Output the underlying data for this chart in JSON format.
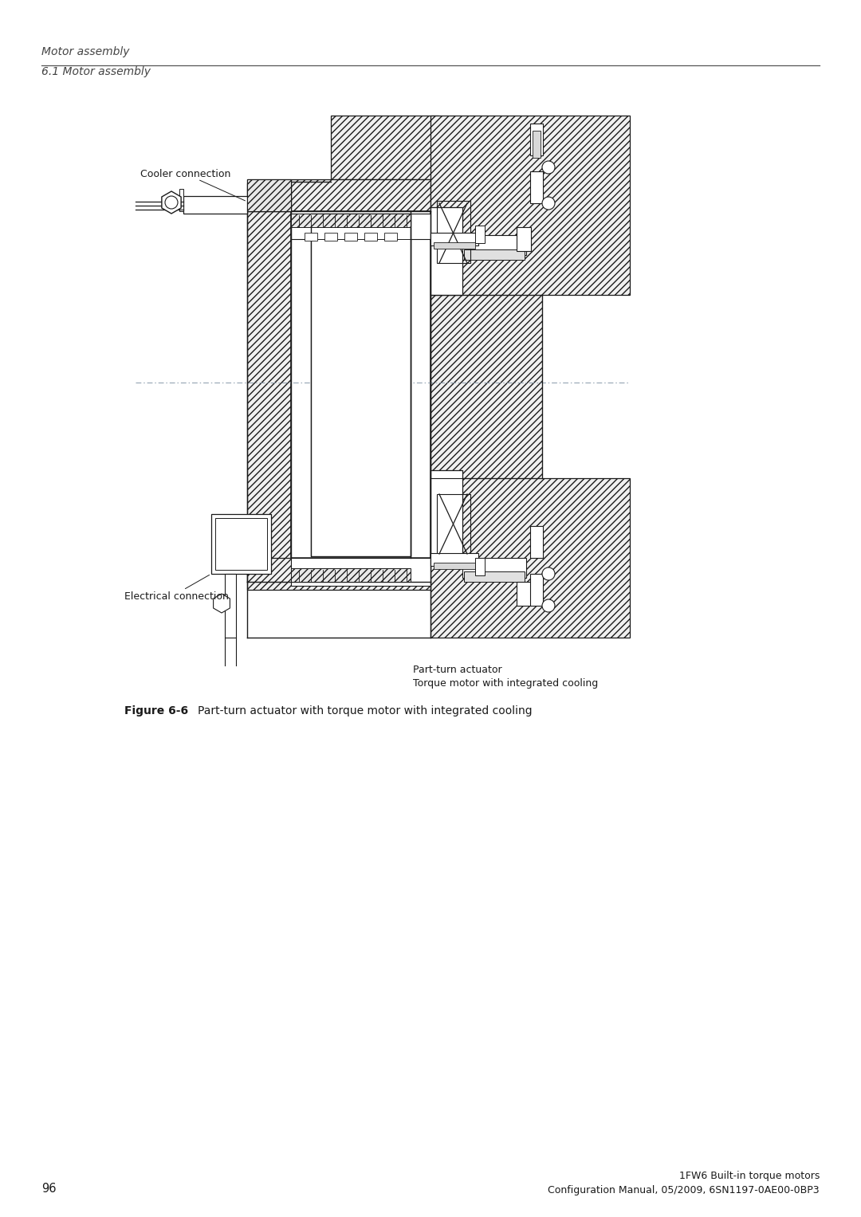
{
  "bg_color": "#ffffff",
  "header_line1": "Motor assembly",
  "header_line2": "6.1 Motor assembly",
  "cooler_label": "Cooler connection",
  "electrical_label": "Electrical connection",
  "annotation_line1": "Part-turn actuator",
  "annotation_line2": "Torque motor with integrated cooling",
  "caption_bold": "Figure 6-6",
  "caption_text": "Part-turn actuator with torque motor with integrated cooling",
  "footer_page": "96",
  "footer_line1": "1FW6 Built-in torque motors",
  "footer_line2": "Configuration Manual, 05/2009, 6SN1197-0AE00-0BP3",
  "lc": "#1a1a1a",
  "hc": "#1a1a1a",
  "tc": "#1a1a1a",
  "axis_color": "#8899aa"
}
